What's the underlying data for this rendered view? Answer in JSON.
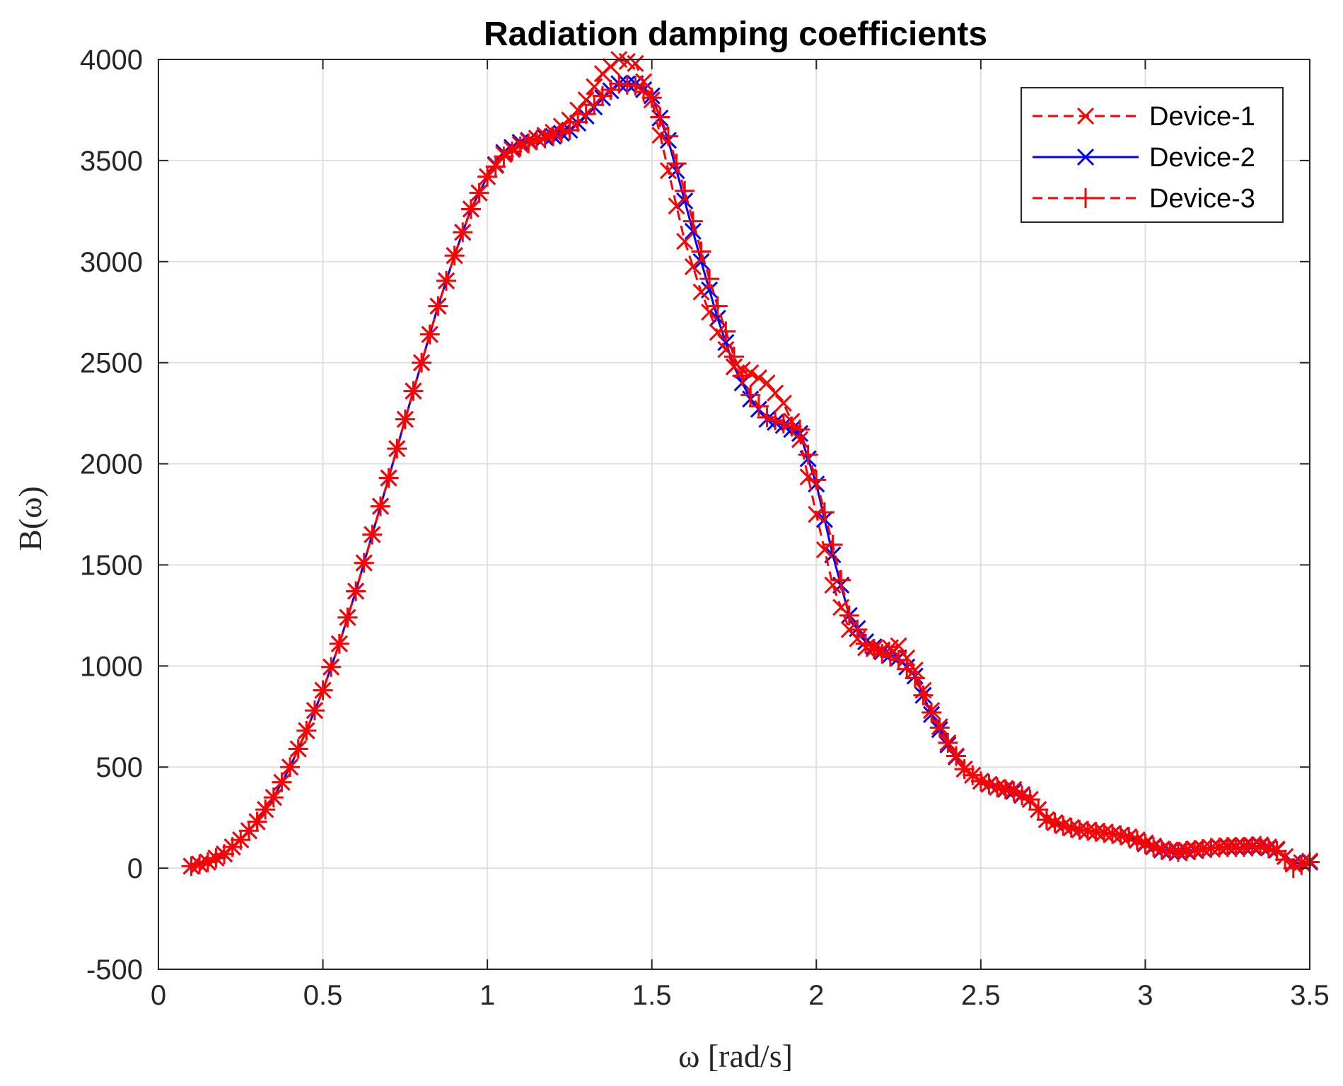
{
  "chart_data": {
    "type": "line",
    "title": "Radiation damping coefficients",
    "xlabel": "ω [rad/s]",
    "ylabel": "B(ω)",
    "xlim": [
      0,
      3.5
    ],
    "ylim": [
      -500,
      4000
    ],
    "grid": true,
    "legend_position": "top-right",
    "xticks": [
      0,
      0.5,
      1,
      1.5,
      2,
      2.5,
      3,
      3.5
    ],
    "xtick_labels": [
      "0",
      "0.5",
      "1",
      "1.5",
      "2",
      "2.5",
      "3",
      "3.5"
    ],
    "yticks": [
      -500,
      0,
      500,
      1000,
      1500,
      2000,
      2500,
      3000,
      3500,
      4000
    ],
    "ytick_labels": [
      "-500",
      "0",
      "500",
      "1000",
      "1500",
      "2000",
      "2500",
      "3000",
      "3500",
      "4000"
    ],
    "series": [
      {
        "name": "Device-1",
        "color": "#ff0000",
        "line_style": "dashed",
        "marker": "x",
        "x": [
          0.1,
          0.15,
          0.2,
          0.25,
          0.3,
          0.35,
          0.4,
          0.45,
          0.5,
          0.55,
          0.6,
          0.65,
          0.7,
          0.75,
          0.8,
          0.85,
          0.9,
          0.95,
          1.0,
          1.05,
          1.1,
          1.15,
          1.2,
          1.25,
          1.3,
          1.35,
          1.4,
          1.45,
          1.5,
          1.55,
          1.6,
          1.65,
          1.7,
          1.75,
          1.8,
          1.85,
          1.9,
          1.95,
          2.0,
          2.05,
          2.1,
          2.15,
          2.2,
          2.25,
          2.3,
          2.35,
          2.4,
          2.45,
          2.5,
          2.55,
          2.6,
          2.65,
          2.7,
          2.75,
          2.8,
          2.85,
          2.9,
          2.95,
          3.0,
          3.05,
          3.1,
          3.15,
          3.2,
          3.25,
          3.3,
          3.35,
          3.4,
          3.45,
          3.5
        ],
        "y": [
          10,
          30,
          70,
          140,
          230,
          350,
          500,
          680,
          880,
          1110,
          1370,
          1650,
          1930,
          2220,
          2500,
          2780,
          3030,
          3260,
          3420,
          3530,
          3580,
          3610,
          3640,
          3700,
          3800,
          3930,
          4000,
          3980,
          3800,
          3450,
          3100,
          2850,
          2650,
          2480,
          2450,
          2400,
          2300,
          2120,
          1750,
          1400,
          1180,
          1090,
          1080,
          1100,
          980,
          780,
          620,
          490,
          430,
          400,
          390,
          340,
          240,
          210,
          190,
          180,
          170,
          155,
          125,
          95,
          85,
          95,
          100,
          110,
          110,
          115,
          95,
          20,
          35
        ]
      },
      {
        "name": "Device-2",
        "color": "#0000ff",
        "line_style": "solid",
        "marker": "x",
        "x": [
          0.1,
          0.15,
          0.2,
          0.25,
          0.3,
          0.35,
          0.4,
          0.45,
          0.5,
          0.55,
          0.6,
          0.65,
          0.7,
          0.75,
          0.8,
          0.85,
          0.9,
          0.95,
          1.0,
          1.05,
          1.1,
          1.15,
          1.2,
          1.25,
          1.3,
          1.35,
          1.4,
          1.45,
          1.5,
          1.55,
          1.6,
          1.65,
          1.7,
          1.75,
          1.8,
          1.85,
          1.9,
          1.95,
          2.0,
          2.05,
          2.1,
          2.15,
          2.2,
          2.25,
          2.3,
          2.35,
          2.4,
          2.45,
          2.5,
          2.55,
          2.6,
          2.65,
          2.7,
          2.75,
          2.8,
          2.85,
          2.9,
          2.95,
          3.0,
          3.05,
          3.1,
          3.15,
          3.2,
          3.25,
          3.3,
          3.35,
          3.4,
          3.45,
          3.5
        ],
        "y": [
          10,
          30,
          70,
          140,
          230,
          350,
          500,
          680,
          880,
          1110,
          1370,
          1650,
          1930,
          2220,
          2500,
          2780,
          3030,
          3260,
          3420,
          3540,
          3590,
          3610,
          3620,
          3650,
          3720,
          3810,
          3880,
          3880,
          3820,
          3600,
          3300,
          3000,
          2720,
          2480,
          2320,
          2220,
          2190,
          2150,
          1900,
          1550,
          1250,
          1120,
          1070,
          1040,
          950,
          760,
          610,
          490,
          430,
          400,
          380,
          340,
          240,
          210,
          190,
          180,
          170,
          155,
          120,
          90,
          80,
          90,
          100,
          105,
          105,
          110,
          90,
          25,
          30
        ]
      },
      {
        "name": "Device-3",
        "color": "#ff0000",
        "line_style": "dashed",
        "marker": "+",
        "x": [
          0.1,
          0.15,
          0.2,
          0.25,
          0.3,
          0.35,
          0.4,
          0.45,
          0.5,
          0.55,
          0.6,
          0.65,
          0.7,
          0.75,
          0.8,
          0.85,
          0.9,
          0.95,
          1.0,
          1.05,
          1.1,
          1.15,
          1.2,
          1.25,
          1.3,
          1.35,
          1.4,
          1.45,
          1.5,
          1.55,
          1.6,
          1.65,
          1.7,
          1.75,
          1.8,
          1.85,
          1.9,
          1.95,
          2.0,
          2.05,
          2.1,
          2.15,
          2.2,
          2.25,
          2.3,
          2.35,
          2.4,
          2.45,
          2.5,
          2.55,
          2.6,
          2.65,
          2.7,
          2.75,
          2.8,
          2.85,
          2.9,
          2.95,
          3.0,
          3.05,
          3.1,
          3.15,
          3.2,
          3.25,
          3.3,
          3.35,
          3.4,
          3.45,
          3.5
        ],
        "y": [
          10,
          30,
          70,
          140,
          230,
          350,
          500,
          680,
          880,
          1110,
          1370,
          1650,
          1930,
          2220,
          2500,
          2780,
          3030,
          3260,
          3420,
          3520,
          3570,
          3600,
          3620,
          3650,
          3730,
          3820,
          3880,
          3870,
          3810,
          3620,
          3350,
          3050,
          2780,
          2530,
          2340,
          2230,
          2200,
          2170,
          1920,
          1600,
          1250,
          1110,
          1060,
          1030,
          940,
          770,
          620,
          490,
          430,
          400,
          380,
          340,
          240,
          210,
          190,
          180,
          170,
          155,
          120,
          90,
          80,
          90,
          100,
          105,
          105,
          110,
          85,
          0,
          30
        ]
      }
    ]
  }
}
